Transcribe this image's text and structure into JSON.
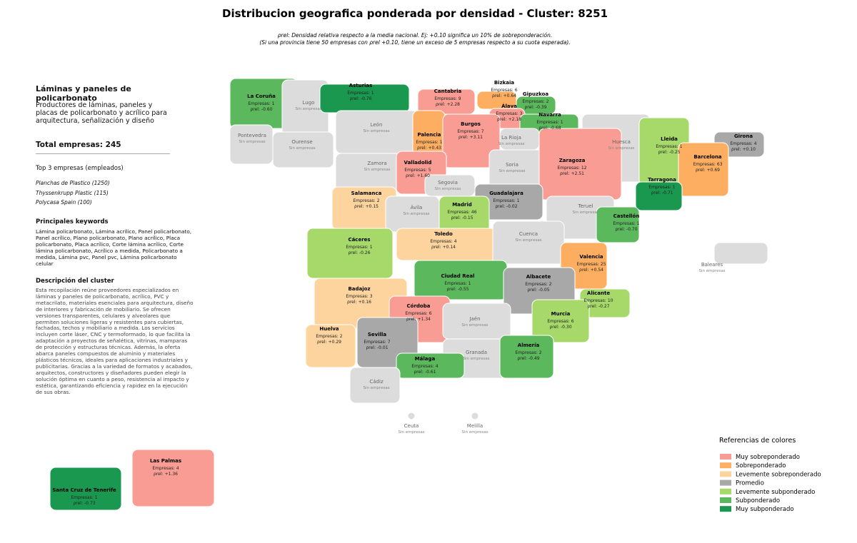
{
  "header": {
    "title": "Distribucion geografica ponderada por densidad - Cluster: 8251",
    "subtitle_1": "ρrel: Densidad relativa respecto a la media nacional. Ej: +0.10 significa un 10% de sobreponderación.",
    "subtitle_2": "(Si una provincia tiene 50 empresas con ρrel +0.10, tiene un exceso de 5 empresas respecto a su cuota esperada)."
  },
  "panel": {
    "title": "Láminas y paneles de policarbonato",
    "summary": "Productores de láminas, paneles y placas de policarbonato y acrílico para arquitectura, señalización y diseño",
    "total_label": "Total empresas:",
    "total": 245,
    "top_title": "Top 3 empresas (empleados)",
    "top": [
      "Planchas de Plastico (1250)",
      "Thyssenkrupp Plastic (115)",
      "Polycasa Spain (100)"
    ],
    "keywords_title": "Principales keywords",
    "keywords": "Lámina policarbonato, Lámina acrílico, Panel policarbonato, Panel acrílico, Plano policarbonato, Plano acrílico, Placa policarbonato, Placa acrílico, Corte lámina acrílico, Corte lámina policarbonato, Acrílico a medida, Policarbonato a medida, Lámina pvc, Panel pvc, Lámina policarbonato celular",
    "description_title": "Descripción del cluster",
    "description": "Esta recopilación reúne proveedores especializados en láminas y paneles de policarbonato, acrílico, PVC y metacrilato, materiales esenciales para arquitectura, diseño de interiores y fabricación de mobiliario. Se ofrecen versiones transparentes, celulares y alveolares que permiten soluciones ligeras y resistentes para cubiertas, fachadas, techos y mobiliario a medida. Los servicios incluyen corte láser, CNC y termoformado, lo que facilita la adaptación a proyectos de señalética, vitrinas, mamparas de protección y estructuras técnicas. Además, la oferta abarca paneles compuestos de aluminio y materiales plásticos técnicos, ideales para aplicaciones industriales y publicitarias. Gracias a la variedad de formatos y acabados, arquitectos, constructores y diseñadores pueden elegir la solución óptima en cuanto a peso, resistencia al impacto y estética, garantizando eficiencia y rapidez en la ejecución de sus obras."
  },
  "map": {
    "empresas_label": "Empresas:",
    "rho_label": "ρrel:",
    "no_data_label": "Sin empresas",
    "provinces": [
      {
        "name": "La Coruña",
        "empresas": 1,
        "rho": "-0.60",
        "color": "#5cb85c"
      },
      {
        "name": "Lugo",
        "color": "#dcdcdc"
      },
      {
        "name": "Asturias",
        "empresas": 1,
        "rho": "-0.76",
        "color": "#1a9850"
      },
      {
        "name": "Cantabria",
        "empresas": 9,
        "rho": "+2.28",
        "color": "#f89c94"
      },
      {
        "name": "Bizkaia",
        "empresas": 6,
        "rho": "+0.64",
        "color": "#fdae61"
      },
      {
        "name": "Gipuzkoa",
        "empresas": 2,
        "rho": "-0.39",
        "color": "#5cb85c"
      },
      {
        "name": "Álava",
        "empresas": 3,
        "rho": "+2.18",
        "color": "#f89c94"
      },
      {
        "name": "Navarra",
        "empresas": 1,
        "rho": "-0.68",
        "color": "#5cb85c"
      },
      {
        "name": "Pontevedra",
        "color": "#dcdcdc"
      },
      {
        "name": "Ourense",
        "color": "#dcdcdc"
      },
      {
        "name": "León",
        "color": "#dcdcdc"
      },
      {
        "name": "Palencia",
        "empresas": 1,
        "rho": "+0.43",
        "color": "#fdae61"
      },
      {
        "name": "Burgos",
        "empresas": 7,
        "rho": "+3.11",
        "color": "#f89c94"
      },
      {
        "name": "La Rioja",
        "color": "#dcdcdc"
      },
      {
        "name": "Huesca",
        "color": "#dcdcdc"
      },
      {
        "name": "Lleida",
        "empresas": 1,
        "rho": "-0.25",
        "color": "#a6d96a"
      },
      {
        "name": "Girona",
        "empresas": 4,
        "rho": "+0.10",
        "color": "#a8a8a8"
      },
      {
        "name": "Barcelona",
        "empresas": 63,
        "rho": "+0.69",
        "color": "#fdae61"
      },
      {
        "name": "Zamora",
        "color": "#dcdcdc"
      },
      {
        "name": "Valladolid",
        "empresas": 5,
        "rho": "+1.60",
        "color": "#f89c94"
      },
      {
        "name": "Soria",
        "color": "#dcdcdc"
      },
      {
        "name": "Zaragoza",
        "empresas": 12,
        "rho": "+2.51",
        "color": "#f89c94"
      },
      {
        "name": "Tarragona",
        "empresas": 1,
        "rho": "-0.71",
        "color": "#1a9850"
      },
      {
        "name": "Segovia",
        "color": "#dcdcdc"
      },
      {
        "name": "Salamanca",
        "empresas": 2,
        "rho": "+0.15",
        "color": "#fdd49e"
      },
      {
        "name": "Guadalajara",
        "empresas": 1,
        "rho": "-0.02",
        "color": "#a8a8a8"
      },
      {
        "name": "Madrid",
        "empresas": 46,
        "rho": "-0.15",
        "color": "#a6d96a"
      },
      {
        "name": "Ávila",
        "color": "#dcdcdc"
      },
      {
        "name": "Teruel",
        "color": "#dcdcdc"
      },
      {
        "name": "Castellón",
        "empresas": 1,
        "rho": "-0.70",
        "color": "#5cb85c"
      },
      {
        "name": "Toledo",
        "empresas": 4,
        "rho": "+0.14",
        "color": "#fdd49e"
      },
      {
        "name": "Cuenca",
        "color": "#dcdcdc"
      },
      {
        "name": "Cáceres",
        "empresas": 1,
        "rho": "-0.26",
        "color": "#a6d96a"
      },
      {
        "name": "Valencia",
        "empresas": 25,
        "rho": "+0.54",
        "color": "#fdae61"
      },
      {
        "name": "Baleares",
        "color": "#dcdcdc"
      },
      {
        "name": "Ciudad Real",
        "empresas": 1,
        "rho": "-0.55",
        "color": "#5cb85c"
      },
      {
        "name": "Albacete",
        "empresas": 2,
        "rho": "-0.05",
        "color": "#a8a8a8"
      },
      {
        "name": "Badajoz",
        "empresas": 3,
        "rho": "+0.16",
        "color": "#fdd49e"
      },
      {
        "name": "Alicante",
        "empresas": 10,
        "rho": "-0.27",
        "color": "#a6d96a"
      },
      {
        "name": "Córdoba",
        "empresas": 6,
        "rho": "+1.34",
        "color": "#f89c94"
      },
      {
        "name": "Jaén",
        "color": "#dcdcdc"
      },
      {
        "name": "Murcia",
        "empresas": 6,
        "rho": "-0.30",
        "color": "#a6d96a"
      },
      {
        "name": "Huelva",
        "empresas": 2,
        "rho": "+0.29",
        "color": "#fdd49e"
      },
      {
        "name": "Sevilla",
        "empresas": 7,
        "rho": "-0.01",
        "color": "#a8a8a8"
      },
      {
        "name": "Granada",
        "color": "#dcdcdc"
      },
      {
        "name": "Almería",
        "empresas": 2,
        "rho": "-0.49",
        "color": "#5cb85c"
      },
      {
        "name": "Málaga",
        "empresas": 4,
        "rho": "-0.61",
        "color": "#5cb85c"
      },
      {
        "name": "Cádiz",
        "color": "#dcdcdc"
      },
      {
        "name": "Ceuta",
        "color": "#dcdcdc"
      },
      {
        "name": "Melilla",
        "color": "#dcdcdc"
      },
      {
        "name": "Las Palmas",
        "empresas": 4,
        "rho": "+1.36",
        "color": "#f89c94"
      },
      {
        "name": "Santa Cruz de Tenerife",
        "empresas": 1,
        "rho": "-0.73",
        "color": "#1a9850"
      }
    ]
  },
  "legend": {
    "title": "Referencias de colores",
    "items": [
      {
        "label": "Muy sobreponderado",
        "color": "#f89c94"
      },
      {
        "label": "Sobreponderado",
        "color": "#fdae61"
      },
      {
        "label": "Levemente sobreponderado",
        "color": "#fdd49e"
      },
      {
        "label": "Promedio",
        "color": "#a8a8a8"
      },
      {
        "label": "Levemente subponderado",
        "color": "#a6d96a"
      },
      {
        "label": "Subponderado",
        "color": "#5cb85c"
      },
      {
        "label": "Muy subponderado",
        "color": "#1a9850"
      }
    ]
  }
}
